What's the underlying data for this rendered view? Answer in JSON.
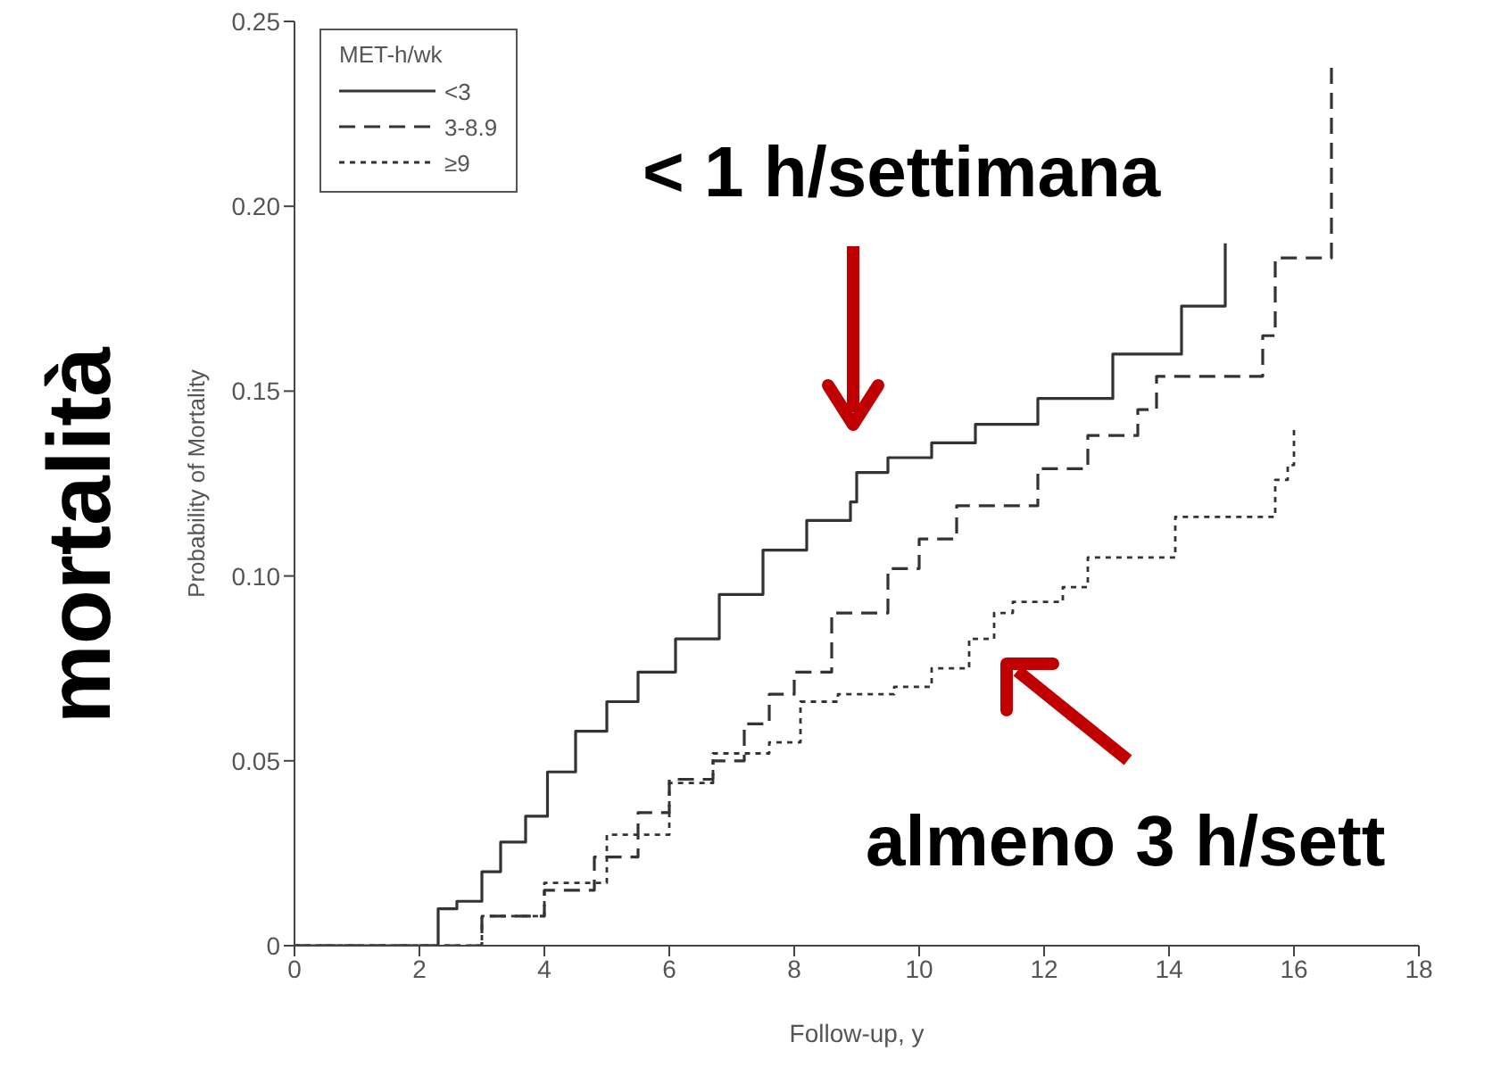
{
  "chart_data": {
    "type": "step",
    "xlabel": "Follow-up, y",
    "ylabel": "Probability of Mortality",
    "legend_title": "MET-h/wk",
    "legend": "top left",
    "xlim": [
      0,
      18
    ],
    "xticks": [
      0,
      2,
      4,
      6,
      8,
      10,
      12,
      14,
      16,
      18
    ],
    "ylim": [
      0,
      0.25
    ],
    "yticks": [
      0,
      0.05,
      {
        "value": 0.1,
        "label": "0.10"
      },
      0.15,
      {
        "value": 0.2,
        "label": "0.20"
      },
      0.25
    ],
    "marker": "none",
    "annotations": [
      "mortalità",
      "< 1 h/settimana",
      "almeno 3 h/sett"
    ],
    "series": [
      {
        "name": "<3",
        "color": "#333333",
        "line_style": "solid",
        "x": [
          0,
          2.1,
          2.3,
          2.6,
          3.0,
          3.3,
          3.7,
          4.05,
          4.5,
          5.0,
          5.5,
          6.1,
          6.8,
          7.5,
          8.2,
          8.9,
          9.0,
          9.5,
          10.2,
          10.9,
          11.9,
          13.1,
          14.2,
          14.9,
          14.9
        ],
        "values": [
          0,
          0,
          0.01,
          0.012,
          0.02,
          0.028,
          0.035,
          0.047,
          0.058,
          0.066,
          0.074,
          0.083,
          0.095,
          0.107,
          0.115,
          0.12,
          0.128,
          0.132,
          0.136,
          0.141,
          0.148,
          0.16,
          0.173,
          0.183,
          0.19
        ]
      },
      {
        "name": "3-8.9",
        "color": "#333333",
        "line_style": "dashed",
        "x": [
          0,
          2.4,
          3.0,
          4.0,
          4.8,
          5.5,
          6.0,
          6.7,
          7.2,
          7.6,
          8.0,
          8.6,
          9.5,
          10.0,
          10.6,
          11.4,
          11.9,
          12.7,
          13.5,
          13.8,
          15.4,
          15.5,
          15.7,
          16.5,
          16.6
        ],
        "values": [
          0,
          0,
          0.008,
          0.015,
          0.024,
          0.036,
          0.045,
          0.05,
          0.06,
          0.068,
          0.074,
          0.09,
          0.102,
          0.11,
          0.119,
          0.119,
          0.129,
          0.138,
          0.145,
          0.154,
          0.154,
          0.165,
          0.186,
          0.186,
          0.238
        ]
      },
      {
        "name": "≥9",
        "color": "#333333",
        "line_style": "dotted",
        "x": [
          0,
          2.6,
          3.0,
          4.0,
          5.0,
          6.0,
          6.7,
          7.6,
          8.1,
          8.7,
          9.6,
          10.2,
          10.8,
          11.2,
          11.5,
          12.3,
          12.7,
          14.0,
          14.1,
          15.6,
          15.7,
          15.9,
          16.0
        ],
        "values": [
          0,
          0,
          0.008,
          0.017,
          0.03,
          0.044,
          0.052,
          0.055,
          0.066,
          0.068,
          0.07,
          0.075,
          0.083,
          0.09,
          0.093,
          0.097,
          0.105,
          0.105,
          0.116,
          0.116,
          0.126,
          0.13,
          0.14
        ]
      }
    ]
  }
}
